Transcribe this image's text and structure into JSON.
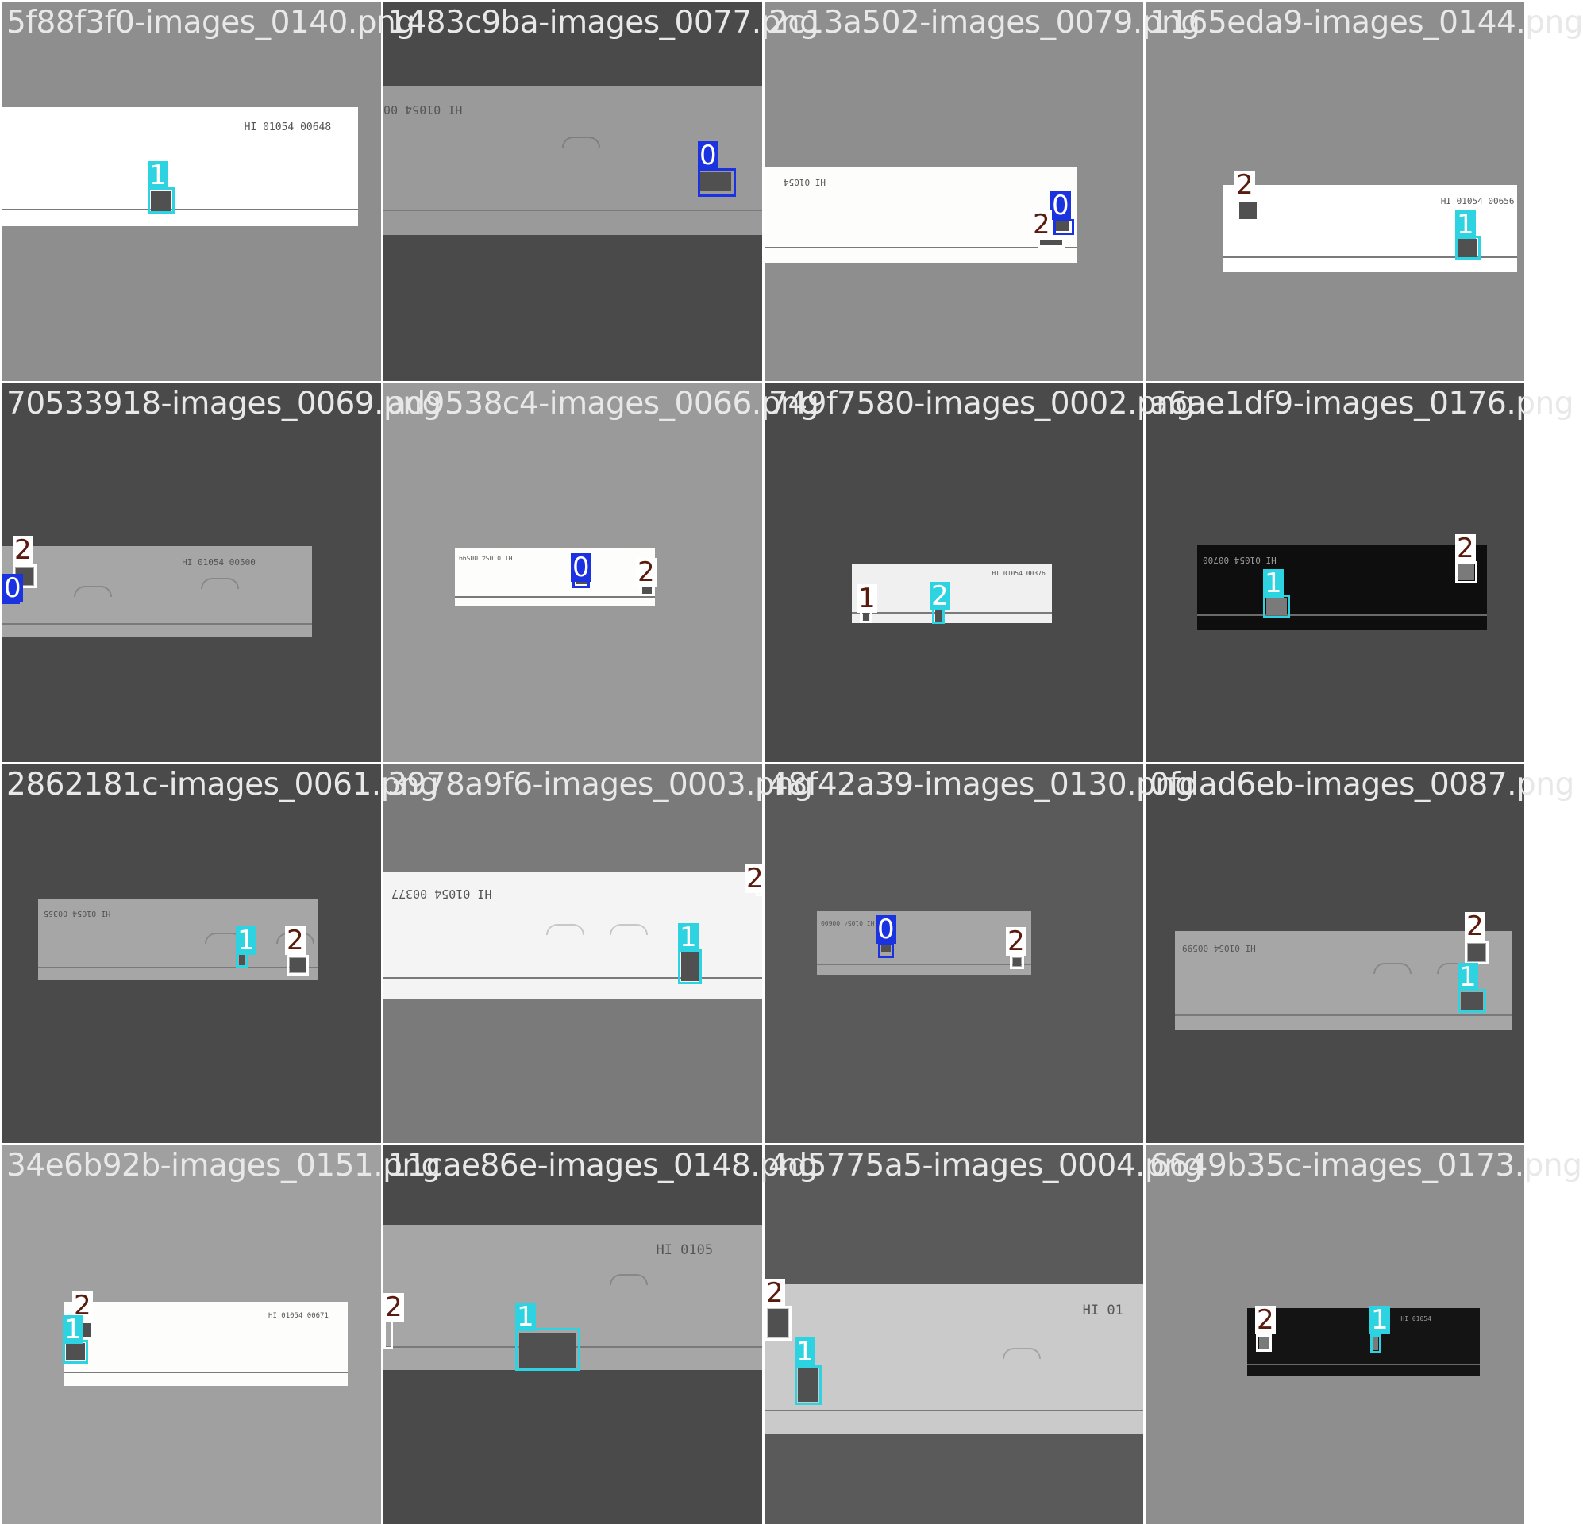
{
  "mosaic": {
    "tiles": [
      {
        "title": "5f88f3f0-images_0140.png",
        "bg": "#8e8e8e",
        "strip": "#ffffff",
        "score": "HI 01054  00648",
        "dark": false,
        "labels": [
          "1"
        ]
      },
      {
        "title": "1483c9ba-images_0077.png",
        "bg": "#4a4a4a",
        "strip": "#9a9a9a",
        "score": "HI 01054 00",
        "dark": false,
        "labels": [
          "0"
        ]
      },
      {
        "title": "2c13a502-images_0079.png",
        "bg": "#8e8e8e",
        "strip": "#fdfdfb",
        "score": "HI 01054",
        "dark": false,
        "labels": [
          "0",
          "2"
        ]
      },
      {
        "title": "1165eda9-images_0144.png",
        "bg": "#8e8e8e",
        "strip": "#ffffff",
        "score": "HI 01054  00656",
        "dark": false,
        "labels": [
          "2",
          "1"
        ]
      },
      {
        "title": "70533918-images_0069.png",
        "bg": "#4a4a4a",
        "strip": "#a6a6a6",
        "score": "HI 01054  00500",
        "dark": false,
        "labels": [
          "2",
          "0"
        ]
      },
      {
        "title": "ad9538c4-images_0066.png",
        "bg": "#9a9a9a",
        "strip": "#fdfdfb",
        "score": "HI 01054 00599",
        "dark": false,
        "labels": [
          "0",
          "2"
        ]
      },
      {
        "title": "749f7580-images_0002.png",
        "bg": "#4a4a4a",
        "strip": "#f0f0f0",
        "score": "HI 01054 00376",
        "dark": false,
        "labels": [
          "2",
          "1"
        ]
      },
      {
        "title": "a6ae1df9-images_0176.png",
        "bg": "#4a4a4a",
        "strip": "#0e0e0e",
        "score": "HI 01054 00700",
        "dark": true,
        "labels": [
          "2",
          "1"
        ]
      },
      {
        "title": "2862181c-images_0061.png",
        "bg": "#4a4a4a",
        "strip": "#a6a6a6",
        "score": "HI 01054 00355",
        "dark": false,
        "labels": [
          "1",
          "2"
        ]
      },
      {
        "title": "3978a9f6-images_0003.png",
        "bg": "#7a7a7a",
        "strip": "#f4f4f4",
        "score": "HI 01054 00377",
        "dark": false,
        "labels": [
          "2",
          "1"
        ]
      },
      {
        "title": "48f42a39-images_0130.png",
        "bg": "#5a5a5a",
        "strip": "#a6a6a6",
        "score": "HI 01054 00600",
        "dark": false,
        "labels": [
          "0",
          "2"
        ]
      },
      {
        "title": "0fdad6eb-images_0087.png",
        "bg": "#4a4a4a",
        "strip": "#a6a6a6",
        "score": "HI 01054 00599",
        "dark": false,
        "labels": [
          "2",
          "1"
        ]
      },
      {
        "title": "34e6b92b-images_0151.png",
        "bg": "#a0a0a0",
        "strip": "#fdfdfb",
        "score": "HI 01054  00671",
        "dark": false,
        "labels": [
          "2",
          "1"
        ]
      },
      {
        "title": "11cae86e-images_0148.png",
        "bg": "#4a4a4a",
        "strip": "#a6a6a6",
        "score": "HI 0105",
        "dark": false,
        "labels": [
          "2",
          "1"
        ]
      },
      {
        "title": "4d5775a5-images_0004.png",
        "bg": "#5a5a5a",
        "strip": "#cacaca",
        "score": "HI 01",
        "dark": false,
        "labels": [
          "2",
          "1"
        ]
      },
      {
        "title": "6649b35c-images_0173.png",
        "bg": "#8e8e8e",
        "strip": "#141414",
        "score": "HI 01054",
        "dark": true,
        "labels": [
          "2",
          "1"
        ]
      }
    ]
  },
  "legend": {
    "class_0": "0",
    "class_1": "1",
    "class_2": "2",
    "class_0_color": "#1a32e0",
    "class_1_color": "#2dd3e0",
    "class_2_color": "#ffffff",
    "label_2_text_color": "#5a1a0e"
  }
}
